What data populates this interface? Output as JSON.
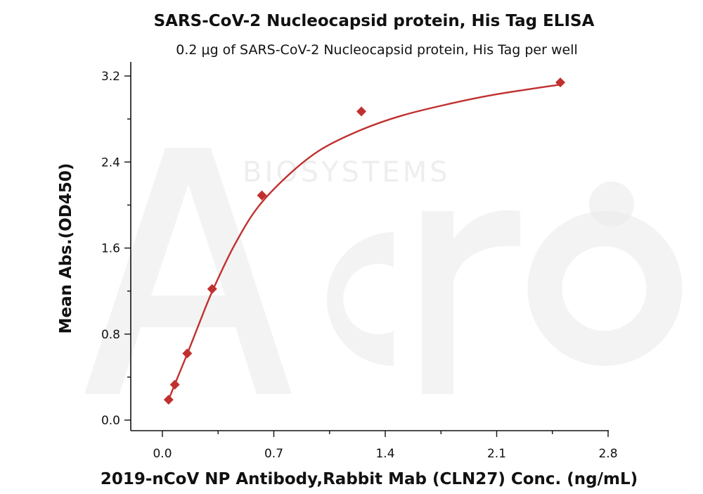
{
  "chart_data": {
    "type": "scatter",
    "title": "SARS-CoV-2 Nucleocapsid protein, His Tag ELISA",
    "subtitle": "0.2 μg of SARS-CoV-2 Nucleocapsid protein, His Tag per well",
    "xlabel": "2019-nCoV NP Antibody,Rabbit Mab (CLN27)  Conc. (ng/mL)",
    "ylabel": "Mean Abs.(OD450)",
    "xlim": [
      -0.2,
      2.9
    ],
    "ylim": [
      -0.1,
      3.25
    ],
    "x_ticks": [
      0.0,
      0.7,
      1.4,
      2.1,
      2.8
    ],
    "x_tick_labels": [
      "0.0",
      "0.7",
      "1.4",
      "2.1",
      "2.8"
    ],
    "y_ticks": [
      0.0,
      0.8,
      1.6,
      2.4,
      3.2
    ],
    "y_tick_labels": [
      "0.0",
      "0.8",
      "1.6",
      "2.4",
      "3.2"
    ],
    "grid": false,
    "series": [
      {
        "marker": "diamond",
        "color": "#c0302f",
        "points": [
          {
            "x": 0.039,
            "y": 0.19
          },
          {
            "x": 0.078,
            "y": 0.33
          },
          {
            "x": 0.156,
            "y": 0.62
          },
          {
            "x": 0.3125,
            "y": 1.22
          },
          {
            "x": 0.625,
            "y": 2.09
          },
          {
            "x": 1.25,
            "y": 2.87
          },
          {
            "x": 2.5,
            "y": 3.14
          }
        ],
        "fit_curve": {
          "color": "#c0302f",
          "points": [
            {
              "x": 0.039,
              "y": 0.19
            },
            {
              "x": 0.08,
              "y": 0.34
            },
            {
              "x": 0.16,
              "y": 0.63
            },
            {
              "x": 0.25,
              "y": 0.97
            },
            {
              "x": 0.32,
              "y": 1.22
            },
            {
              "x": 0.45,
              "y": 1.62
            },
            {
              "x": 0.6,
              "y": 1.98
            },
            {
              "x": 0.8,
              "y": 2.29
            },
            {
              "x": 1.0,
              "y": 2.52
            },
            {
              "x": 1.25,
              "y": 2.7
            },
            {
              "x": 1.5,
              "y": 2.83
            },
            {
              "x": 1.8,
              "y": 2.94
            },
            {
              "x": 2.1,
              "y": 3.03
            },
            {
              "x": 2.5,
              "y": 3.12
            }
          ]
        }
      }
    ]
  },
  "watermark": {
    "text": "BIOSYSTEMS",
    "logo": "Acro"
  }
}
